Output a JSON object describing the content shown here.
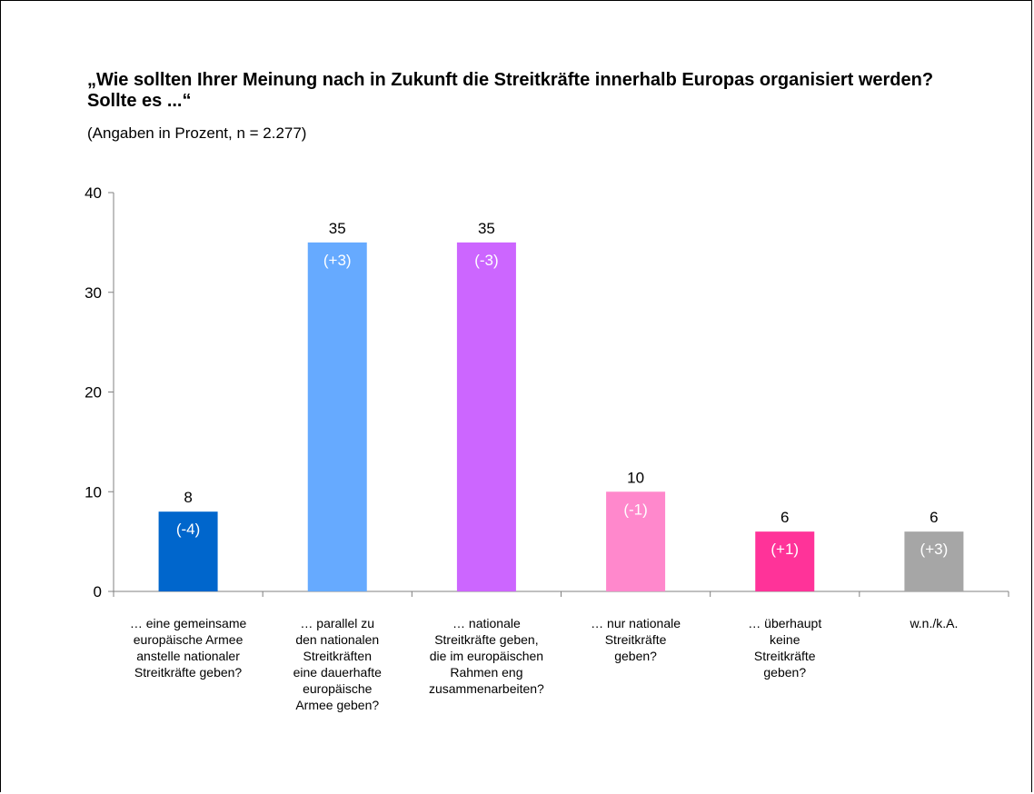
{
  "chart_data": {
    "type": "bar",
    "title": "„Wie sollten Ihrer Meinung nach in Zukunft die Streitkräfte innerhalb Europas organisiert werden? Sollte es ...“",
    "subtitle": "(Angaben in Prozent, n = 2.277)",
    "xlabel": "",
    "ylabel": "",
    "ylim": [
      0,
      40
    ],
    "yticks": [
      "0",
      "10",
      "20",
      "30",
      "40"
    ],
    "grid": false,
    "legend": "none",
    "categories": [
      [
        "… eine gemeinsame",
        "europäische Armee",
        "anstelle nationaler",
        "Streitkräfte geben?"
      ],
      [
        "… parallel zu",
        "den nationalen",
        "Streitkräften",
        "eine dauerhafte",
        "europäische",
        "Armee geben?"
      ],
      [
        "… nationale",
        "Streitkräfte geben,",
        "die im europäischen",
        "Rahmen eng",
        "zusammenarbeiten?"
      ],
      [
        "… nur nationale",
        "Streitkräfte",
        "geben?"
      ],
      [
        "… überhaupt",
        "keine",
        "Streitkräfte",
        "geben?"
      ],
      [
        "w.n./k.A."
      ]
    ],
    "values": [
      8,
      35,
      35,
      10,
      6,
      6
    ],
    "value_labels": [
      "8",
      "35",
      "35",
      "10",
      "6",
      "6"
    ],
    "changes": [
      "(-4)",
      "(+3)",
      "(-3)",
      "(-1)",
      "(+1)",
      "(+3)"
    ],
    "colors": [
      "#0066cc",
      "#66aaff",
      "#cc66ff",
      "#ff88cc",
      "#ff3399",
      "#a6a6a6"
    ]
  }
}
